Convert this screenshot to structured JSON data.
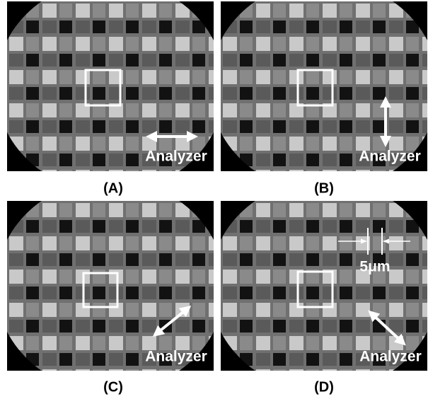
{
  "panels": [
    {
      "label": "(A)",
      "analyzer": "Analyzer"
    },
    {
      "label": "(B)",
      "analyzer": "Analyzer"
    },
    {
      "label": "(C)",
      "analyzer": "Analyzer"
    },
    {
      "label": "(D)",
      "analyzer": "Analyzer"
    }
  ],
  "scale_bar": "5μm"
}
